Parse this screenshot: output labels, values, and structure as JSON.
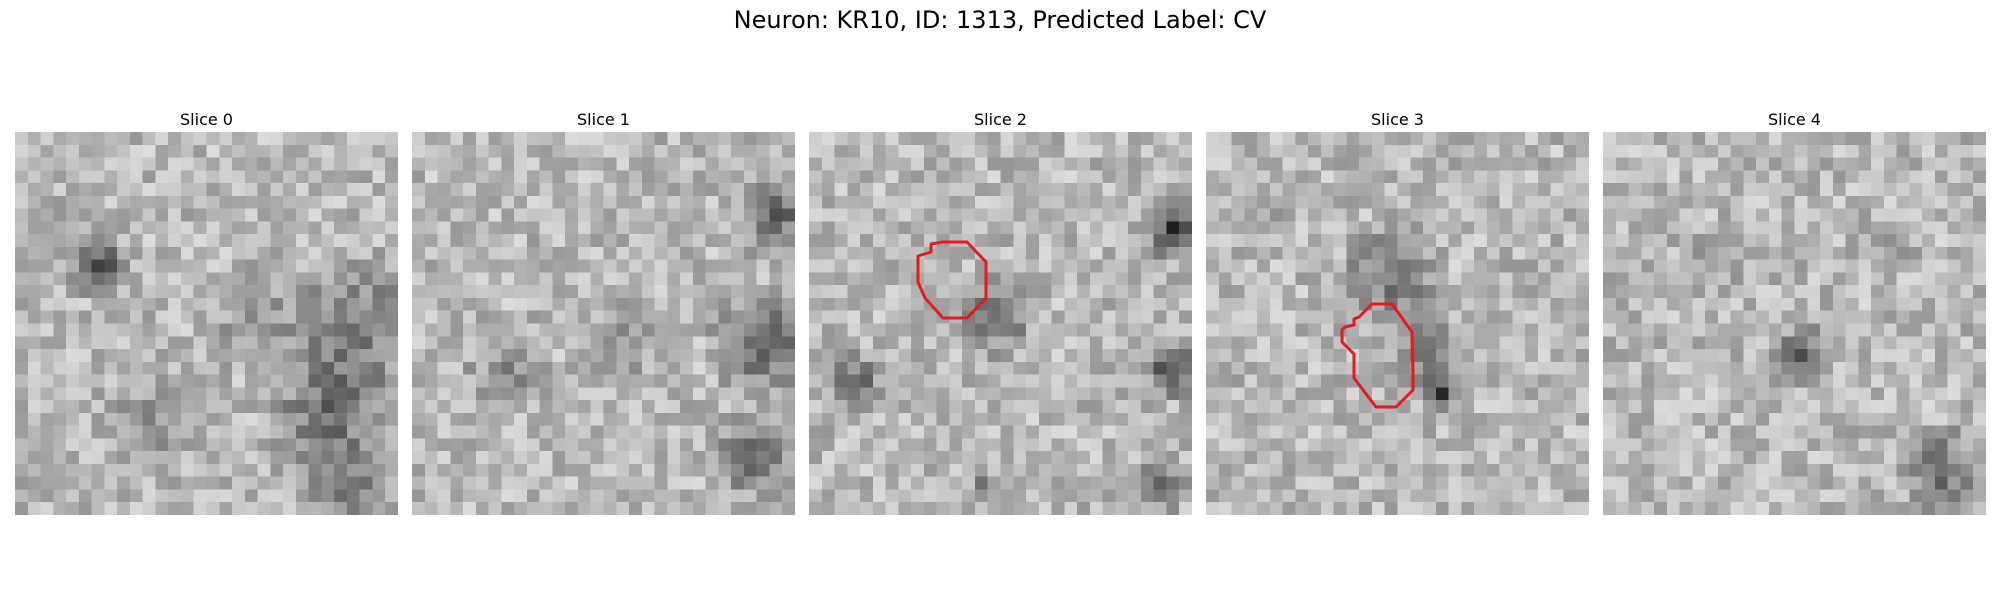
{
  "figure": {
    "title": "Neuron: KR10, ID: 1313, Predicted Label: CV"
  },
  "panels": [
    {
      "title": "Slice 0",
      "has_contour": false
    },
    {
      "title": "Slice 1",
      "has_contour": false
    },
    {
      "title": "Slice 2",
      "has_contour": true
    },
    {
      "title": "Slice 3",
      "has_contour": true
    },
    {
      "title": "Slice 4",
      "has_contour": false
    }
  ],
  "colors": {
    "contour": "#e41a1c",
    "background": "#ffffff"
  },
  "colormap": "gray"
}
